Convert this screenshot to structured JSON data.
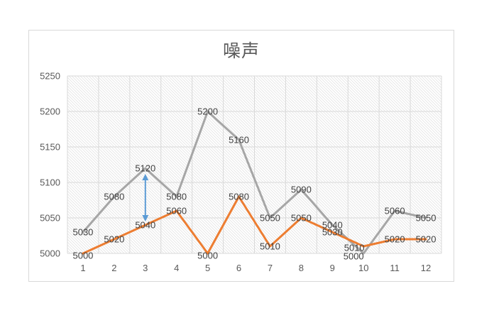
{
  "chart_data": {
    "type": "line",
    "title": "噪声",
    "categories": [
      "1",
      "2",
      "3",
      "4",
      "5",
      "6",
      "7",
      "8",
      "9",
      "10",
      "11",
      "12"
    ],
    "series": [
      {
        "color": "#A6A6A6",
        "values": [
          5030,
          5080,
          5120,
          5080,
          5200,
          5160,
          5050,
          5090,
          5040,
          5000,
          5060,
          5050
        ]
      },
      {
        "color": "#ED7D31",
        "values": [
          5000,
          5020,
          5040,
          5060,
          5000,
          5080,
          5010,
          5050,
          5030,
          5010,
          5020,
          5020
        ]
      }
    ],
    "ylim": [
      5000,
      5250
    ],
    "yticks": [
      5000,
      5050,
      5100,
      5150,
      5200,
      5250
    ],
    "grid": true,
    "legend": "none",
    "data_labels_position": "center",
    "plot_fill": "light-downward-diagonal-hatch",
    "annotation": {
      "type": "double-headed-arrow",
      "category": "3",
      "from_value": 5040,
      "to_value": 5120,
      "color": "#5B9BD5"
    },
    "colors": {
      "gridline": "#D9D9D9",
      "hatch": "#E3E3E3",
      "axis_label": "#595959",
      "data_label": "#404040",
      "title": "#595959",
      "border": "#D9D9D9"
    },
    "label_offsets": {
      "0": {
        "9": [
          -14,
          4
        ]
      },
      "1": {
        "9": [
          -13,
          2
        ],
        "0": [
          0,
          3
        ],
        "4": [
          0,
          3
        ]
      }
    }
  }
}
